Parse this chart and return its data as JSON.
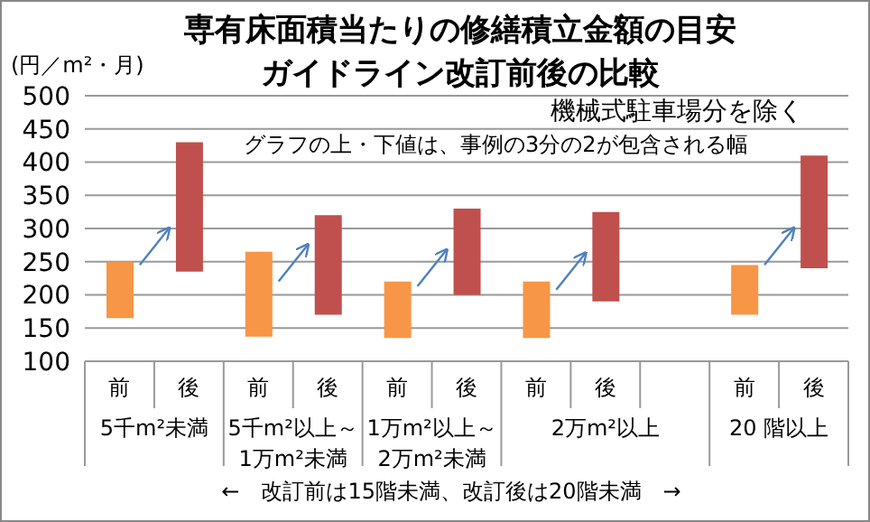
{
  "chart_data": {
    "type": "bar",
    "title": "専有床面積当たりの修繕積立金額の目安",
    "subtitle": "ガイドライン改訂前後の比較",
    "ylabel": "(円／m²・月)",
    "categories": [
      "前",
      "後",
      "前",
      "後",
      "前",
      "後",
      "前",
      "後",
      null,
      "前",
      "後"
    ],
    "base": [
      165,
      235,
      137,
      170,
      135,
      200,
      135,
      190,
      null,
      170,
      240
    ],
    "values": [
      85,
      195,
      128,
      150,
      85,
      130,
      85,
      135,
      null,
      75,
      170
    ],
    "colors": [
      "#f79646",
      "#c0504d",
      "#f79646",
      "#c0504d",
      "#f79646",
      "#c0504d",
      "#f79646",
      "#c0504d",
      "#f79646",
      "#f79646",
      "#c0504d"
    ],
    "ylim": [
      100,
      500
    ],
    "yticks": [
      100,
      150,
      200,
      250,
      300,
      350,
      400,
      450,
      500
    ],
    "grid": "y",
    "annotations": [
      "機械式駐車場分を除く",
      "グラフの上・下値は、事例の3分の2が包含される幅",
      "5千m²未満",
      "5千m²以上～\n1万m²未満",
      "1万m²以上～\n2万m²未満",
      "2万m²以上",
      "20 階以上",
      "←　改訂前は15階未満、改訂後は20階未満　→"
    ]
  }
}
